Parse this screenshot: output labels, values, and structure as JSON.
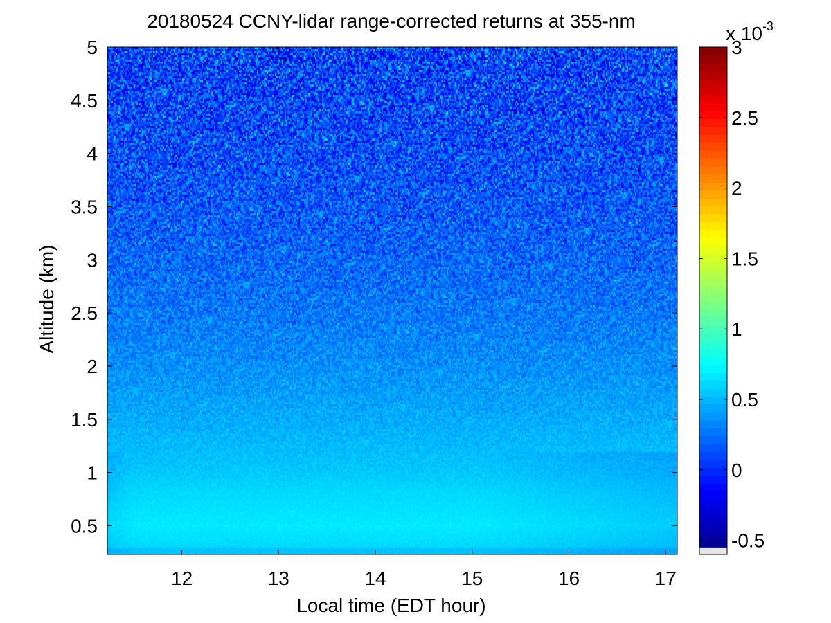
{
  "chart_data": {
    "type": "heatmap",
    "title": "20180524 CCNY-lidar range-corrected returns at 355-nm",
    "xlabel": "Local time (EDT hour)",
    "ylabel": "Altitude (km)",
    "xlim": [
      11.23,
      17.12
    ],
    "ylim": [
      0.23,
      5.0
    ],
    "xticks": [
      12,
      13,
      14,
      15,
      16,
      17
    ],
    "yticks": [
      0.5,
      1,
      1.5,
      2,
      2.5,
      3,
      3.5,
      4,
      4.5,
      5
    ],
    "colorbar": {
      "label": "",
      "exponent_label": "x 10",
      "exponent_power": "-3",
      "range": [
        -0.6,
        3.0
      ],
      "ticks": [
        -0.5,
        0,
        0.5,
        1,
        1.5,
        2,
        2.5,
        3
      ],
      "colormap": "jet"
    },
    "grid": false,
    "description_profile": {
      "altitude_km": [
        0.3,
        0.5,
        0.8,
        1.0,
        1.5,
        2.0,
        2.5,
        3.0,
        3.5,
        4.0,
        4.5,
        5.0
      ],
      "mean_value_x1e-3": [
        0.62,
        0.68,
        0.62,
        0.56,
        0.46,
        0.36,
        0.28,
        0.22,
        0.17,
        0.13,
        0.1,
        0.08
      ]
    }
  }
}
